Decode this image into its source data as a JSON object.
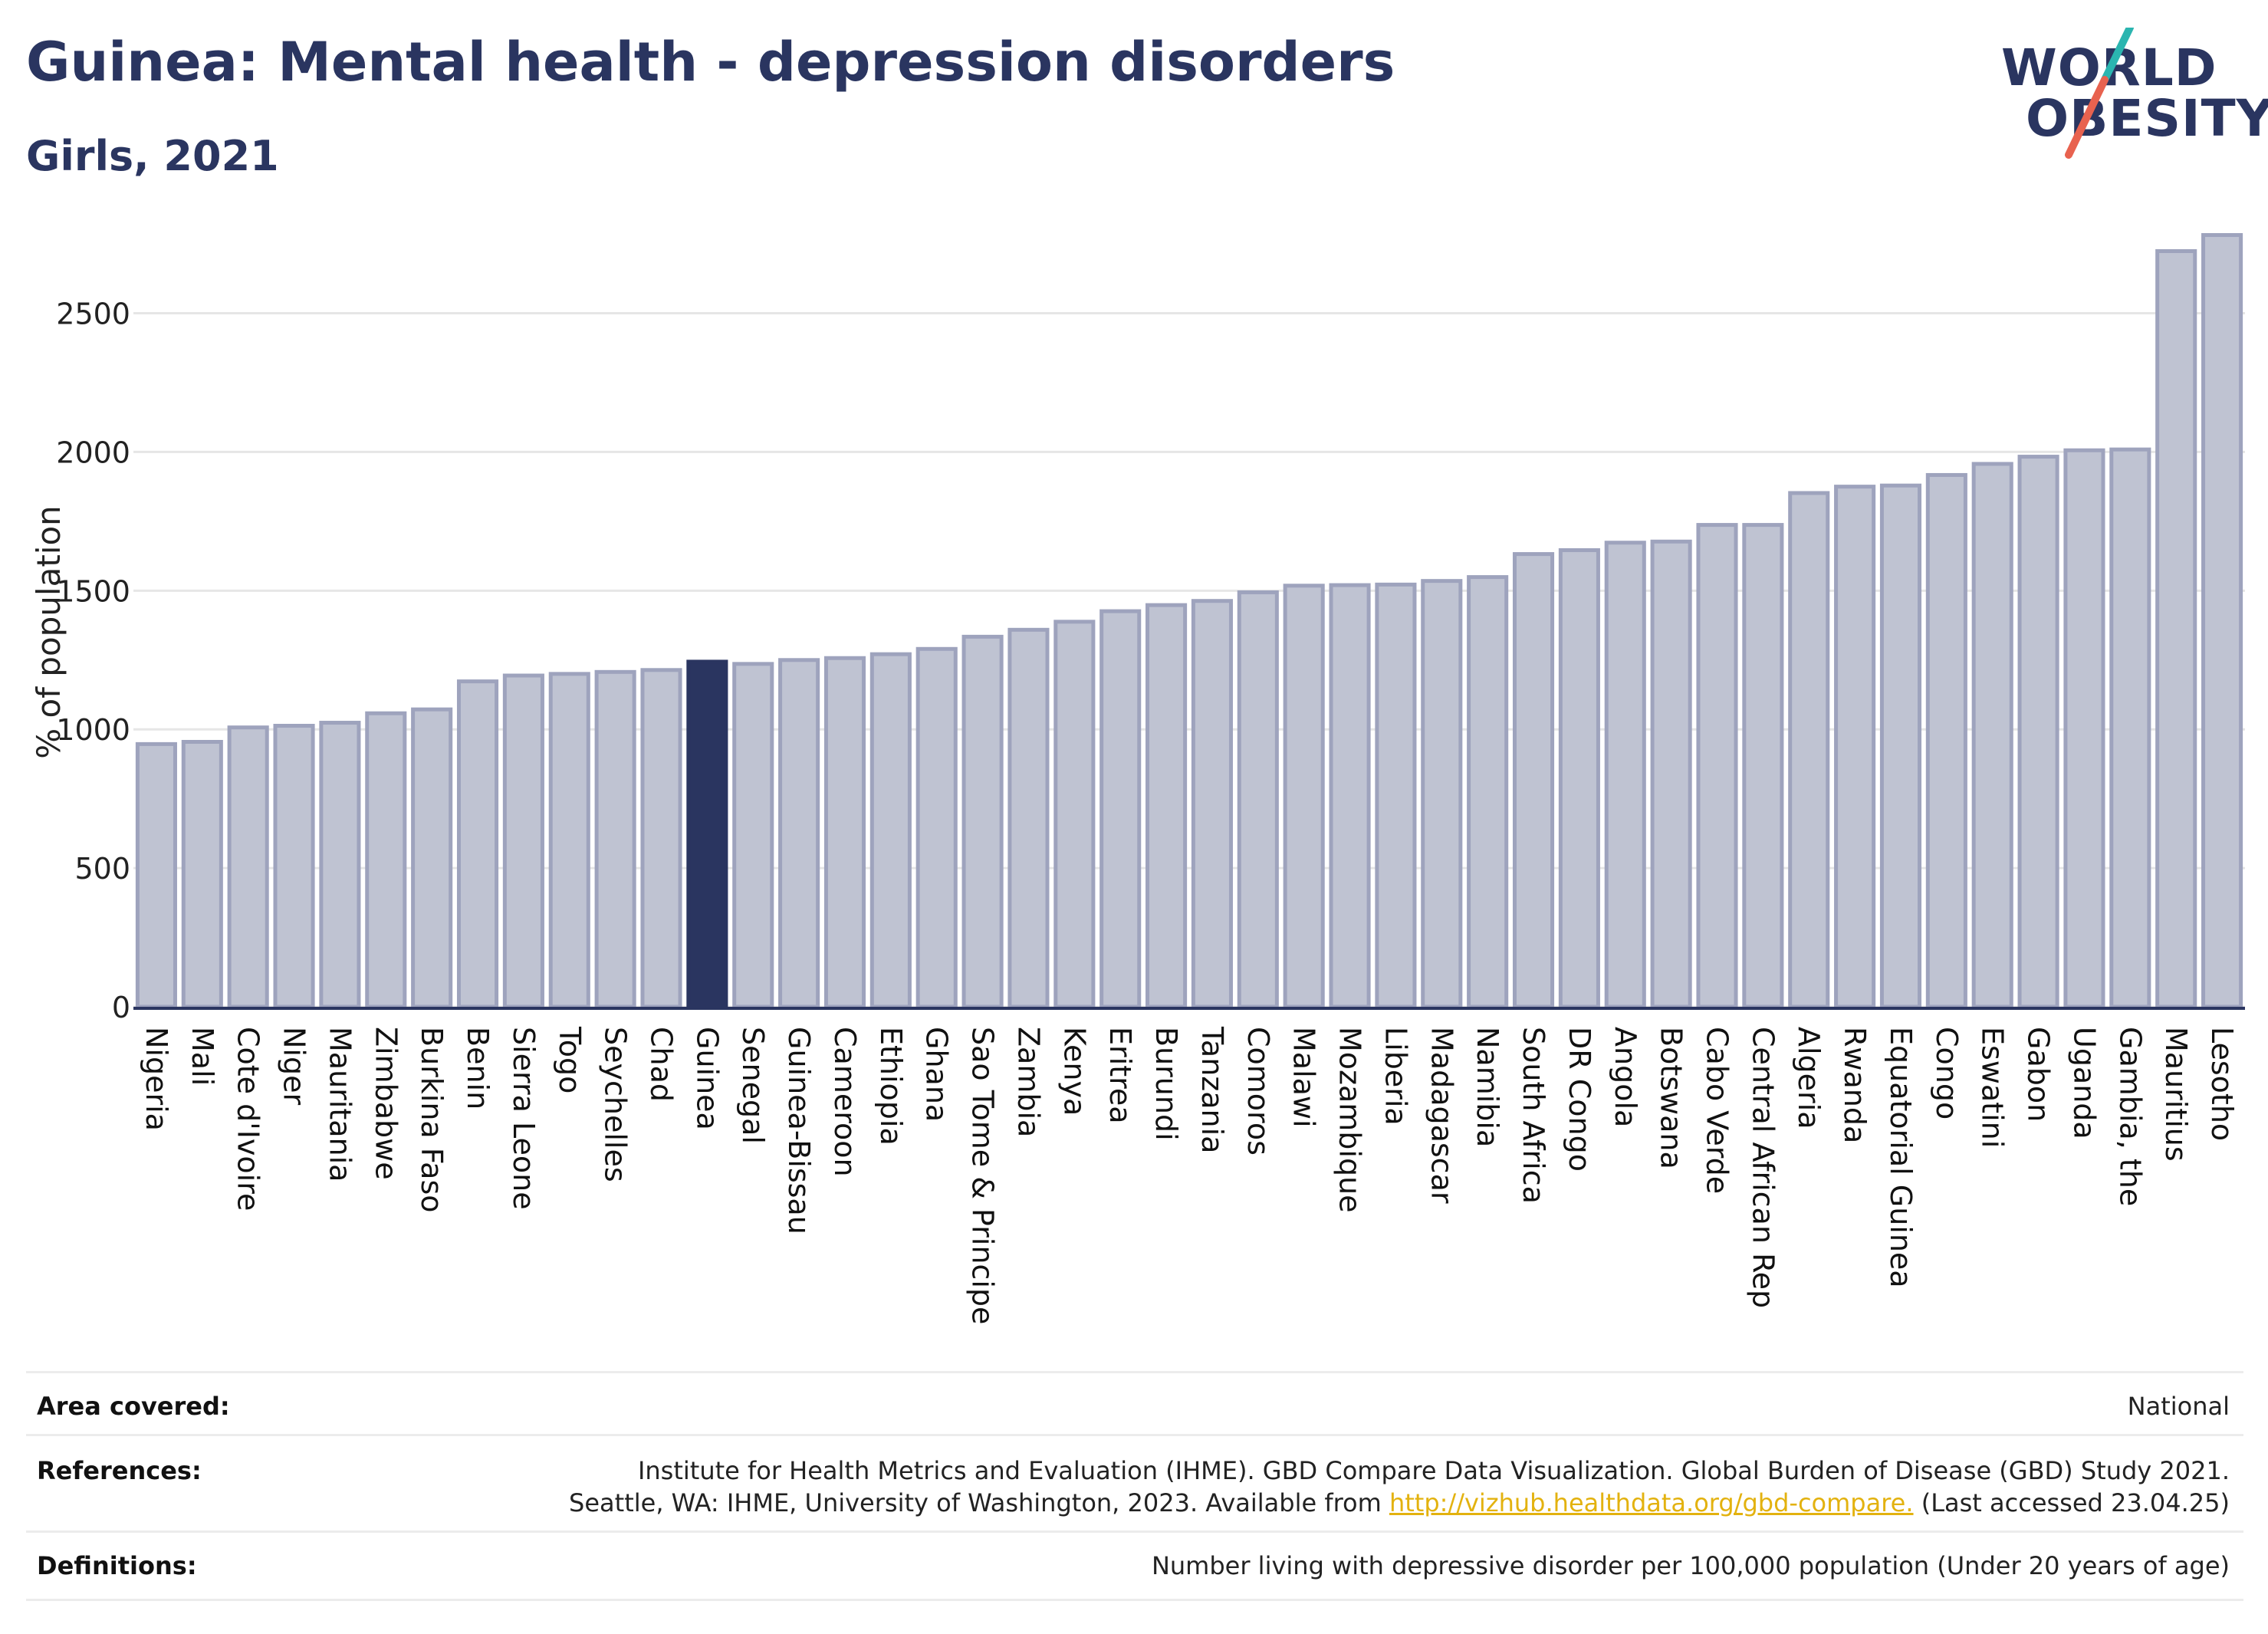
{
  "header": {
    "title": "Guinea: Mental health - depression disorders",
    "subtitle": "Girls, 2021"
  },
  "logo": {
    "line1": "WORLD",
    "line2": "OBESITY",
    "slash_colors": [
      "#2bb5b0",
      "#e8624f"
    ]
  },
  "colors": {
    "bar": "#bfc3d2",
    "bar_stroke": "#9ea3bd",
    "highlight": "#2a3560",
    "grid": "#e6e6e6",
    "axis": "#2a3560"
  },
  "chart_data": {
    "type": "bar",
    "ylabel": "% of population",
    "ylim": [
      0,
      2800
    ],
    "yticks": [
      0,
      500,
      1000,
      1500,
      2000,
      2500
    ],
    "grid": true,
    "highlight": "Guinea",
    "categories": [
      "Nigeria",
      "Mali",
      "Cote d'Ivoire",
      "Niger",
      "Mauritania",
      "Zimbabwe",
      "Burkina Faso",
      "Benin",
      "Sierra Leone",
      "Togo",
      "Seychelles",
      "Chad",
      "Guinea",
      "Senegal",
      "Guinea-Bissau",
      "Cameroon",
      "Ethiopia",
      "Ghana",
      "Sao Tome & Principe",
      "Zambia",
      "Kenya",
      "Eritrea",
      "Burundi",
      "Tanzania",
      "Comoros",
      "Malawi",
      "Mozambique",
      "Liberia",
      "Madagascar",
      "Namibia",
      "South Africa",
      "DR Congo",
      "Angola",
      "Botswana",
      "Cabo Verde",
      "Central African Rep",
      "Algeria",
      "Rwanda",
      "Equatorial Guinea",
      "Congo",
      "Eswatini",
      "Gabon",
      "Uganda",
      "Gambia, the",
      "Mauritius",
      "Lesotho"
    ],
    "values": [
      947,
      955,
      1007,
      1013,
      1024,
      1058,
      1072,
      1173,
      1194,
      1200,
      1207,
      1214,
      1244,
      1236,
      1250,
      1257,
      1271,
      1290,
      1334,
      1359,
      1388,
      1426,
      1448,
      1463,
      1494,
      1518,
      1520,
      1522,
      1535,
      1549,
      1632,
      1646,
      1673,
      1677,
      1737,
      1737,
      1852,
      1875,
      1879,
      1917,
      1957,
      1983,
      2006,
      2009,
      2724,
      2782
    ]
  },
  "footer": {
    "area_label": "Area covered:",
    "area_value": "National",
    "references_label": "References:",
    "references_line1": "Institute for Health Metrics and Evaluation (IHME). GBD Compare Data Visualization. Global Burden of Disease (GBD) Study 2021.",
    "references_line2_pre": "Seattle, WA: IHME, University of Washington, 2023. Available from ",
    "references_link": "http://vizhub.healthdata.org/gbd-compare.",
    "references_line2_post": " (Last accessed 23.04.25)",
    "definitions_label": "Definitions:",
    "definitions_value": "Number living with depressive disorder per 100,000 population (Under 20 years of age)"
  }
}
